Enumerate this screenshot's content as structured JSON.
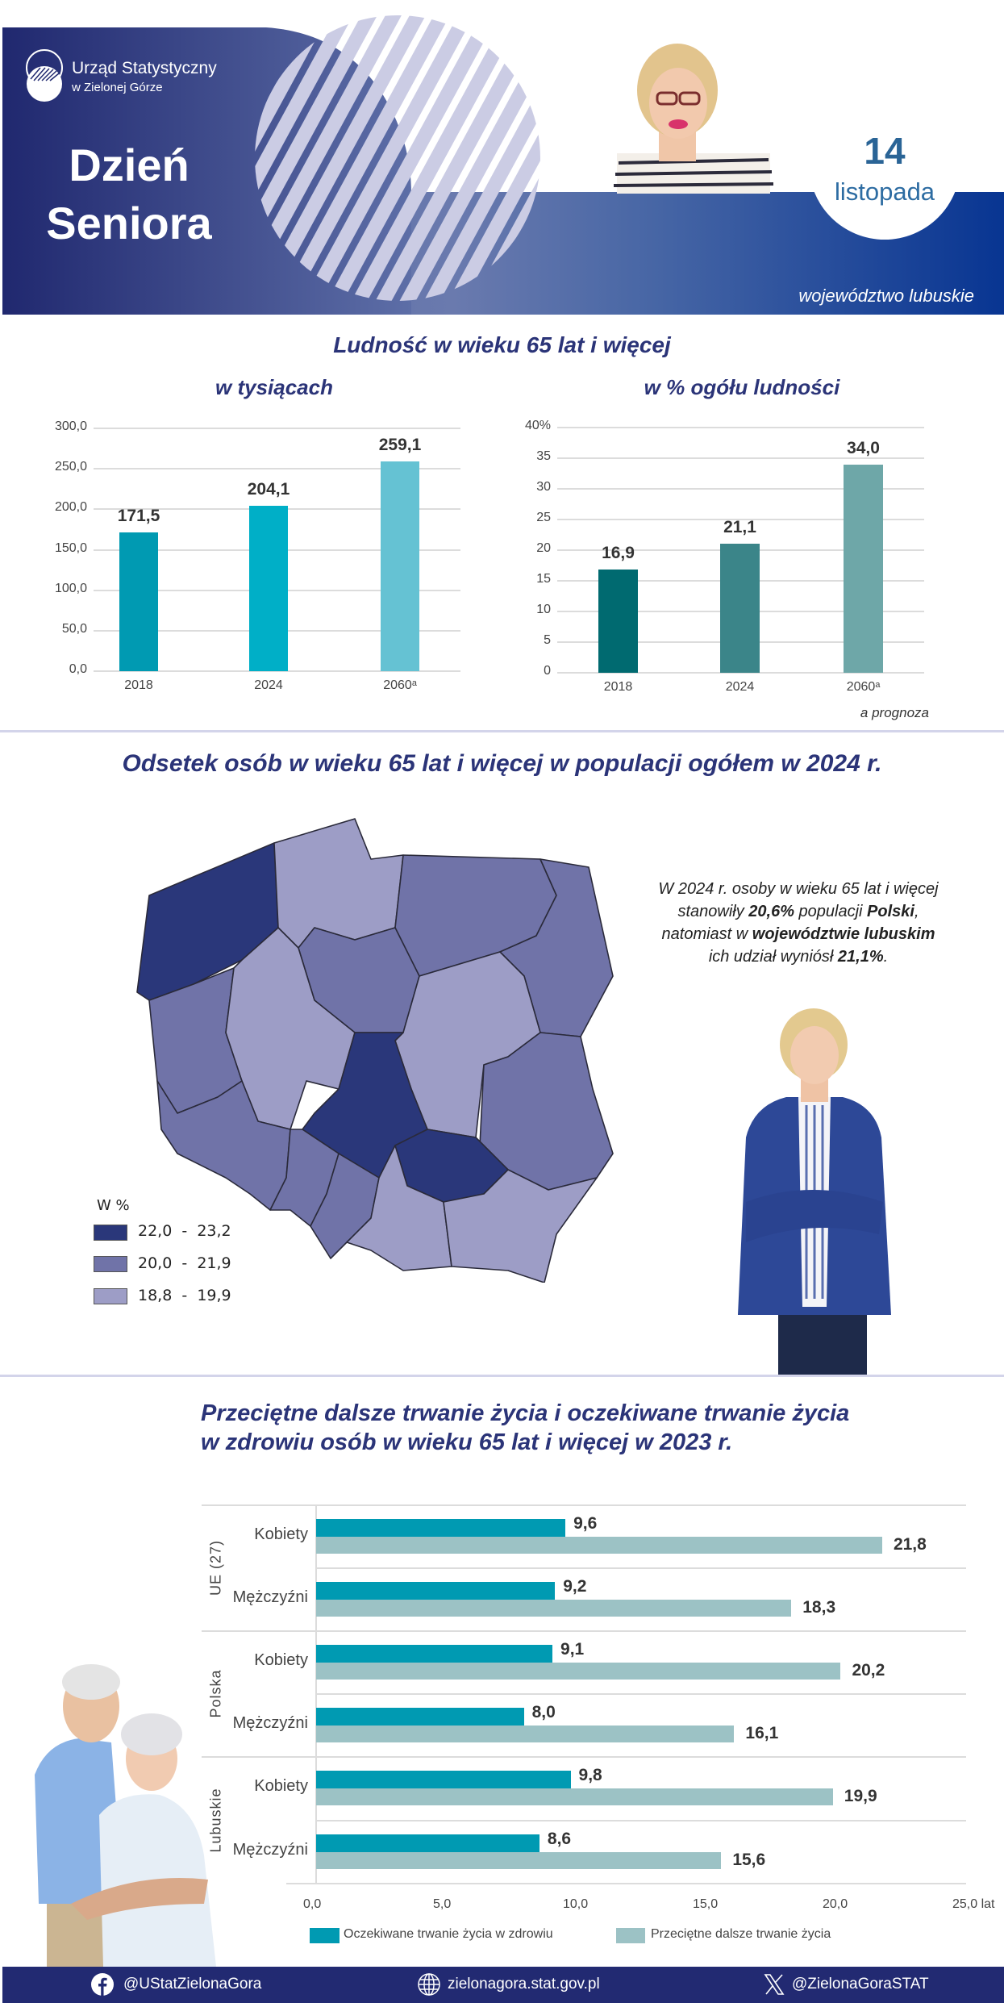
{
  "header": {
    "org_name": "Urząd Statystyczny",
    "org_sub": "w Zielonej Górze",
    "title_line1": "Dzień",
    "title_line2": "Seniora",
    "date_day": "14",
    "date_month": "listopada",
    "region": "województwo lubuskie",
    "colors": {
      "navy": "#222a72",
      "band_left": "#5a6ba8",
      "band_right": "#083592",
      "stripe": "#cbcce4",
      "date_text": "#2a6496"
    }
  },
  "section1": {
    "title": "Ludność w wieku 65 lat i więcej",
    "footnote": "a prognoza"
  },
  "section2": {
    "title": "Odsetek osób w wieku 65 lat i więcej w populacji ogółem w 2024 r.",
    "note_line1": "W 2024 r. osoby w wieku 65 lat i więcej",
    "note_line2_pre": "stanowiły ",
    "note_line2_b1": "20,6%",
    "note_line2_mid": " populacji ",
    "note_line2_b2": "Polski",
    "note_line2_post": ",",
    "note_line3_pre": "natomiast w ",
    "note_line3_b": "województwie lubuskim",
    "note_line4_pre": "ich udział wyniósł ",
    "note_line4_b": "21,1%",
    "note_line4_post": ".",
    "legend": {
      "title": "W %",
      "items": [
        {
          "label": "22,0  -  23,2",
          "color": "#2a377a"
        },
        {
          "label": "20,0  -  21,9",
          "color": "#7073a8"
        },
        {
          "label": "18,8  -  19,9",
          "color": "#9d9dc6"
        }
      ]
    }
  },
  "section3": {
    "title_line1": "Przeciętne dalsze trwanie życia i oczekiwane trwanie życia",
    "title_line2": "w zdrowiu osób w wieku 65 lat i więcej w 2023 r."
  },
  "footer": {
    "facebook": "@UStatZielonaGora",
    "website": "zielonagora.stat.gov.pl",
    "x_handle": "@ZielonaGoraSTAT"
  },
  "chart_data": [
    {
      "type": "bar",
      "title": "w tysiącach",
      "categories": [
        "2018",
        "2024",
        "2060ᵃ"
      ],
      "values": [
        171.5,
        204.1,
        259.1
      ],
      "value_labels": [
        "171,5",
        "204,1",
        "259,1"
      ],
      "colors": [
        "#009ab2",
        "#00afc7",
        "#65c2d3"
      ],
      "yticks": [
        "0,0",
        "50,0",
        "100,0",
        "150,0",
        "200,0",
        "250,0",
        "300,0"
      ],
      "ylim": [
        0,
        300
      ],
      "xlabel": "",
      "ylabel": "",
      "grid": true
    },
    {
      "type": "bar",
      "title": "w % ogółu ludności",
      "categories": [
        "2018",
        "2024",
        "2060ᵃ"
      ],
      "values": [
        16.9,
        21.1,
        34.0
      ],
      "value_labels": [
        "16,9",
        "21,1",
        "34,0"
      ],
      "colors": [
        "#006a70",
        "#3b8589",
        "#6ea7a8"
      ],
      "yticks": [
        "0",
        "5",
        "10",
        "15",
        "20",
        "25",
        "30",
        "35",
        "40%"
      ],
      "ylim": [
        0,
        40
      ],
      "xlabel": "",
      "ylabel": "",
      "grid": true
    },
    {
      "type": "bar",
      "orientation": "horizontal",
      "title": "Przeciętne dalsze trwanie życia i oczekiwane trwanie życia w zdrowiu osób w wieku 65 lat i więcej w 2023 r.",
      "groups": [
        "UE (27)",
        "Polska",
        "Lubuskie"
      ],
      "categories": [
        "UE (27) Kobiety",
        "UE (27) Mężczyźni",
        "Polska Kobiety",
        "Polska Mężczyźni",
        "Lubuskie Kobiety",
        "Lubuskie Mężczyźni"
      ],
      "row_labels": [
        "Kobiety",
        "Mężczyźni",
        "Kobiety",
        "Mężczyźni",
        "Kobiety",
        "Mężczyźni"
      ],
      "series": [
        {
          "name": "Oczekiwane trwanie życia w zdrowiu",
          "color": "#009ab2",
          "values": [
            9.6,
            9.2,
            9.1,
            8.0,
            9.8,
            8.6
          ],
          "labels": [
            "9,6",
            "9,2",
            "9,1",
            "8,0",
            "9,8",
            "8,6"
          ]
        },
        {
          "name": "Przeciętne dalsze trwanie życia",
          "color": "#9cc2c5",
          "values": [
            21.8,
            18.3,
            20.2,
            16.1,
            19.9,
            15.6
          ],
          "labels": [
            "21,8",
            "18,3",
            "20,2",
            "16,1",
            "19,9",
            "15,6"
          ]
        }
      ],
      "xticks": [
        "0,0",
        "5,0",
        "10,0",
        "15,0",
        "20,0",
        "25,0 lat"
      ],
      "xlim": [
        0,
        25
      ],
      "xlabel": "lat",
      "legend_position": "bottom"
    }
  ]
}
